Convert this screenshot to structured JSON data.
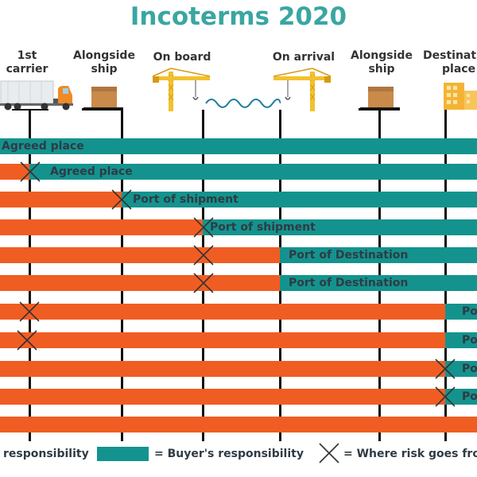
{
  "title": "Incoterms 2020",
  "columns": [
    {
      "label_line1": "1st",
      "label_line2": "carrier",
      "icon": "truck-icon"
    },
    {
      "label_line1": "Alongside",
      "label_line2": "ship",
      "icon": "box-icon"
    },
    {
      "label_line1": "On board",
      "label_line2": "",
      "icon": "crane-icon"
    },
    {
      "label_line1": "On arrival",
      "label_line2": "",
      "icon": "crane-icon"
    },
    {
      "label_line1": "Alongside",
      "label_line2": "ship",
      "icon": "box-icon"
    },
    {
      "label_line1": "Destinati",
      "label_line2": "place",
      "icon": "building-icon"
    }
  ],
  "rows": [
    {
      "buyer_label": "Agreed place",
      "risk": false
    },
    {
      "buyer_label": "Agreed place",
      "risk": true
    },
    {
      "buyer_label": "Port of shipment",
      "risk": true
    },
    {
      "buyer_label": "Port of shipment",
      "risk": true
    },
    {
      "buyer_label": "Port of Destination",
      "risk": true
    },
    {
      "buyer_label": "Port of Destination",
      "risk": true
    },
    {
      "buyer_label": "Po",
      "risk": true
    },
    {
      "buyer_label": "Po",
      "risk": true
    },
    {
      "buyer_label": "Po",
      "risk": true
    },
    {
      "buyer_label": "Po",
      "risk": true
    },
    {
      "buyer_label": "",
      "risk": false
    }
  ],
  "legend": {
    "seller_text": "responsibility",
    "buyer_text": "= Buyer's responsibility",
    "risk_text": "= Where risk goes fro"
  },
  "colors": {
    "seller": "#f05d23",
    "buyer": "#14938e",
    "title": "#3aa6a2"
  }
}
